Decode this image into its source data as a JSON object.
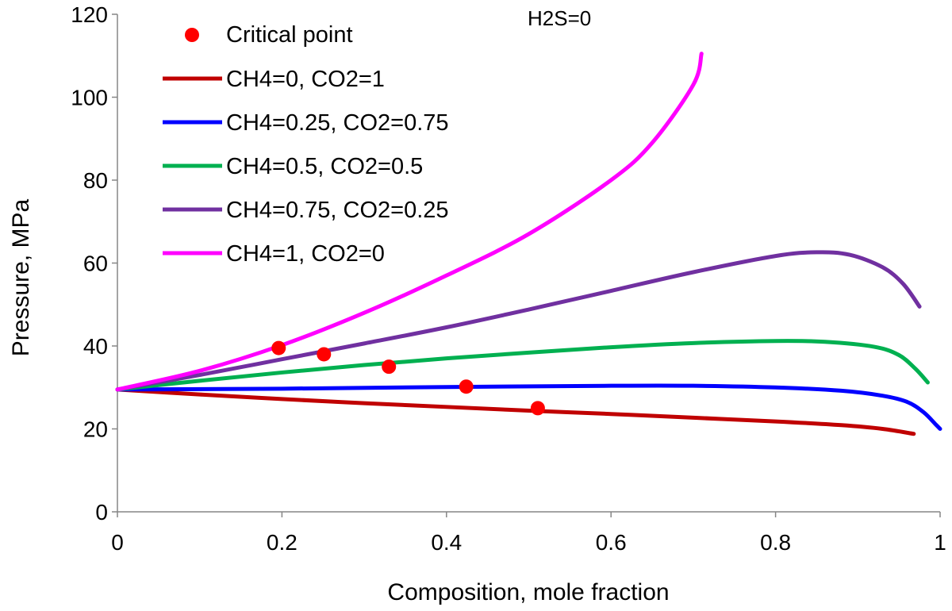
{
  "chart_data": {
    "type": "line",
    "title": "",
    "annotation": "H2S=0",
    "xlabel": "Composition, mole fraction",
    "ylabel": "Pressure,  MPa",
    "xlim": [
      0,
      1
    ],
    "ylim": [
      0,
      120
    ],
    "x_ticks": [
      "0",
      "0.2",
      "0.4",
      "0.6",
      "0.8",
      "1"
    ],
    "y_ticks": [
      "0",
      "20",
      "40",
      "60",
      "80",
      "100",
      "120"
    ],
    "x_tick_values": [
      0,
      0.2,
      0.4,
      0.6,
      0.8,
      1
    ],
    "y_tick_values": [
      0,
      20,
      40,
      60,
      80,
      100,
      120
    ],
    "legend_position": "top-left",
    "critical_points": {
      "name": "Critical point",
      "color": "#ff0000",
      "points": [
        [
          0.196,
          39.5
        ],
        [
          0.251,
          38.0
        ],
        [
          0.33,
          35.0
        ],
        [
          0.424,
          30.2
        ],
        [
          0.511,
          25.0
        ]
      ]
    },
    "series": [
      {
        "name": "CH4=0, CO2=1",
        "color": "#c00000",
        "points": [
          [
            0,
            29.5
          ],
          [
            0.1,
            28.3
          ],
          [
            0.2,
            27.2
          ],
          [
            0.3,
            26.2
          ],
          [
            0.4,
            25.3
          ],
          [
            0.5,
            24.4
          ],
          [
            0.6,
            23.6
          ],
          [
            0.7,
            22.7
          ],
          [
            0.8,
            21.8
          ],
          [
            0.88,
            20.9
          ],
          [
            0.93,
            20.0
          ],
          [
            0.968,
            18.8
          ]
        ]
      },
      {
        "name": "CH4=0.25, CO2=0.75",
        "color": "#0000ff",
        "points": [
          [
            0,
            29.5
          ],
          [
            0.2,
            29.7
          ],
          [
            0.4,
            30.1
          ],
          [
            0.6,
            30.4
          ],
          [
            0.7,
            30.4
          ],
          [
            0.8,
            30.0
          ],
          [
            0.88,
            29.2
          ],
          [
            0.93,
            28.0
          ],
          [
            0.96,
            26.5
          ],
          [
            0.98,
            24.0
          ],
          [
            0.995,
            21.0
          ],
          [
            1.0,
            20.0
          ]
        ]
      },
      {
        "name": "CH4=0.5, CO2=0.5",
        "color": "#00b050",
        "points": [
          [
            0,
            29.5
          ],
          [
            0.1,
            31.6
          ],
          [
            0.2,
            33.6
          ],
          [
            0.3,
            35.4
          ],
          [
            0.4,
            37.0
          ],
          [
            0.5,
            38.4
          ],
          [
            0.6,
            39.7
          ],
          [
            0.7,
            40.7
          ],
          [
            0.8,
            41.2
          ],
          [
            0.86,
            41.0
          ],
          [
            0.92,
            39.8
          ],
          [
            0.95,
            37.8
          ],
          [
            0.97,
            34.5
          ],
          [
            0.985,
            31.2
          ]
        ]
      },
      {
        "name": "CH4=0.75, CO2=0.25",
        "color": "#7030a0",
        "points": [
          [
            0,
            29.5
          ],
          [
            0.1,
            33.0
          ],
          [
            0.2,
            36.8
          ],
          [
            0.3,
            40.6
          ],
          [
            0.4,
            44.5
          ],
          [
            0.5,
            48.8
          ],
          [
            0.6,
            53.3
          ],
          [
            0.7,
            57.8
          ],
          [
            0.8,
            61.7
          ],
          [
            0.85,
            62.6
          ],
          [
            0.89,
            62.0
          ],
          [
            0.93,
            59.0
          ],
          [
            0.955,
            55.0
          ],
          [
            0.975,
            49.5
          ]
        ]
      },
      {
        "name": "CH4=1, CO2=0",
        "color": "#ff00ff",
        "points": [
          [
            0,
            29.5
          ],
          [
            0.1,
            34.0
          ],
          [
            0.2,
            40.2
          ],
          [
            0.3,
            48.0
          ],
          [
            0.4,
            57.0
          ],
          [
            0.5,
            67.0
          ],
          [
            0.6,
            80.0
          ],
          [
            0.65,
            89.0
          ],
          [
            0.7,
            103.0
          ],
          [
            0.71,
            110.5
          ]
        ]
      }
    ]
  }
}
